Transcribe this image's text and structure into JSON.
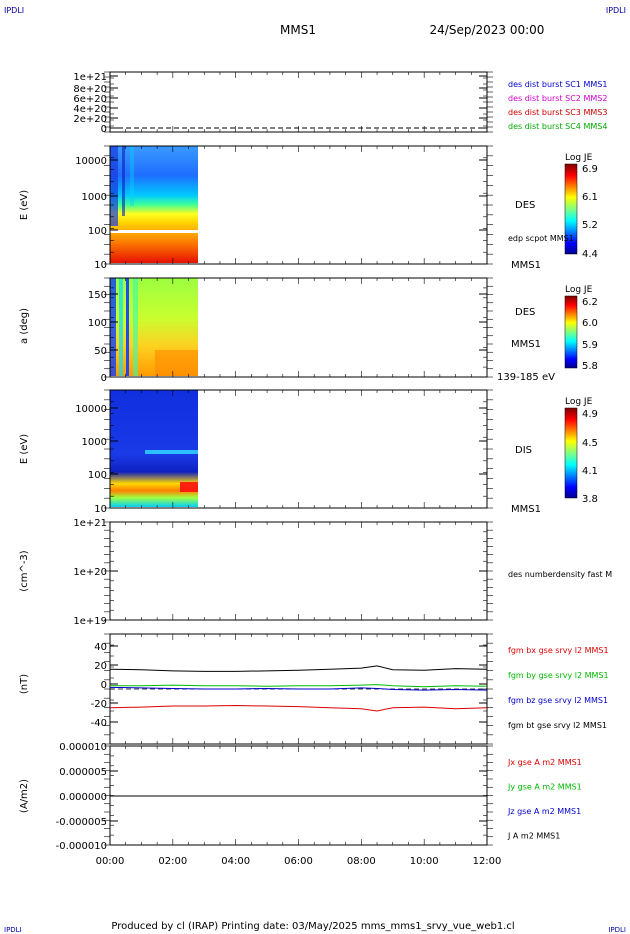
{
  "header": {
    "corner_left": "IPDLI",
    "corner_right": "IPDLI",
    "spacecraft": "MMS1",
    "date": "24/Sep/2023 00:00"
  },
  "footer": {
    "text": "Produced by cl (IRAP)   Printing date: 03/May/2025   mms_mms1_srvy_vue_web1.cl",
    "corner_left": "IPDLI",
    "corner_right": "IPDLI"
  },
  "colors": {
    "mms1": "#0000cc",
    "mms2": "#cc00cc",
    "mms3": "#cc0000",
    "mms4": "#00aa00",
    "bx": "#dd0000",
    "by": "#00bb00",
    "bz": "#0000cc",
    "bt": "#000000"
  },
  "chart_data": [
    {
      "type": "line",
      "id": "dist",
      "y_ticks": [
        "1e+21",
        "8e+20",
        "6e+20",
        "4e+20",
        "2e+20",
        "0"
      ],
      "ylim": [
        0,
        1.1e+21
      ],
      "series": [
        {
          "name": "des dist burst SC1 MMS1",
          "color": "#0000cc",
          "values": []
        },
        {
          "name": "des dist burst SC2 MMS2",
          "color": "#cc00cc",
          "values": []
        },
        {
          "name": "des dist burst SC3 MMS3",
          "color": "#cc0000",
          "values": []
        },
        {
          "name": "des dist burst SC4 MMS4",
          "color": "#00aa00",
          "values": []
        }
      ],
      "baseline": 0
    },
    {
      "type": "heatmap",
      "id": "des_energy",
      "ylabel": "E (eV)",
      "yscale": "log",
      "y_ticks": [
        "10000",
        "1000",
        "100",
        "10"
      ],
      "label": "DES",
      "sub": "MMS1",
      "extra": "edp scpot MMS1",
      "colorbar": {
        "title": "Log JE",
        "ticks": [
          "6.9",
          "6.1",
          "5.2",
          "4.4"
        ]
      },
      "data_end": "02:50"
    },
    {
      "type": "heatmap",
      "id": "des_pitch",
      "ylabel": "a (deg)",
      "y_ticks": [
        "150",
        "100",
        "50",
        "0"
      ],
      "label": "DES",
      "sub": "MMS1",
      "extra": "139-185 eV",
      "colorbar": {
        "title": "Log JE",
        "ticks": [
          "6.2",
          "6.0",
          "5.9",
          "5.8"
        ]
      },
      "data_end": "02:50"
    },
    {
      "type": "heatmap",
      "id": "dis_energy",
      "ylabel": "E (eV)",
      "yscale": "log",
      "y_ticks": [
        "10000",
        "1000",
        "100",
        "10"
      ],
      "label": "DIS",
      "sub": "MMS1",
      "colorbar": {
        "title": "Log JE",
        "ticks": [
          "4.9",
          "4.5",
          "4.1",
          "3.8"
        ]
      },
      "data_end": "02:50"
    },
    {
      "type": "line",
      "id": "density",
      "ylabel": "(cm^-3)",
      "yscale": "log",
      "y_ticks": [
        "1e+21",
        "1e+20",
        "1e+19"
      ],
      "series": [
        {
          "name": "des numberdensity fast M",
          "values": []
        }
      ]
    },
    {
      "type": "line",
      "id": "fgm",
      "ylabel": "(nT)",
      "ylim": [
        -50,
        50
      ],
      "y_ticks": [
        "40",
        "20",
        "0",
        "-20",
        "-40"
      ],
      "x": [
        0,
        1,
        2,
        3,
        4,
        5,
        6,
        7,
        8,
        8.5,
        9,
        10,
        11,
        12
      ],
      "series": [
        {
          "name": "fgm bx gse srvy l2 MMS1",
          "color": "#dd0000",
          "values": [
            -17,
            -16.5,
            -15.5,
            -15.5,
            -15,
            -15.5,
            -16,
            -17,
            -18,
            -20,
            -17,
            -16.5,
            -18,
            -17
          ]
        },
        {
          "name": "fgm by gse srvy l2 MMS1",
          "color": "#00bb00",
          "values": [
            3,
            3,
            3.5,
            3,
            3,
            2.5,
            3,
            3,
            3.5,
            4,
            3,
            2,
            3,
            2.5
          ]
        },
        {
          "name": "fgm bz gse srvy l2 MMS1",
          "color": "#0000cc",
          "values": [
            1.5,
            1,
            0.5,
            0,
            0,
            0.5,
            0,
            0,
            1,
            0.5,
            -0.5,
            -1,
            -0.5,
            -1
          ]
        },
        {
          "name": "fgm bt gse srvy l2 MMS1",
          "color": "#000000",
          "values": [
            18,
            17.5,
            16.5,
            16,
            16,
            16.5,
            17,
            18,
            19,
            21,
            17.5,
            17,
            18.5,
            18
          ]
        }
      ]
    },
    {
      "type": "line",
      "id": "current",
      "ylabel": "(A/m2)",
      "ylim": [
        -1e-05,
        1e-05
      ],
      "y_ticks": [
        "0.000010",
        "0.000005",
        "0.000000",
        "-0.000005",
        "-0.000010"
      ],
      "series": [
        {
          "name": "Jx gse A m2 MMS1",
          "color": "#dd0000",
          "values": []
        },
        {
          "name": "Jy gse A m2 MMS1",
          "color": "#00bb00",
          "values": []
        },
        {
          "name": "Jz gse A m2 MMS1",
          "color": "#0000cc",
          "values": []
        },
        {
          "name": "J A m2 MMS1",
          "color": "#000000",
          "values": []
        }
      ],
      "baseline": 0
    }
  ],
  "x_ticks": [
    "00:00",
    "02:00",
    "04:00",
    "06:00",
    "08:00",
    "10:00",
    "12:00"
  ]
}
